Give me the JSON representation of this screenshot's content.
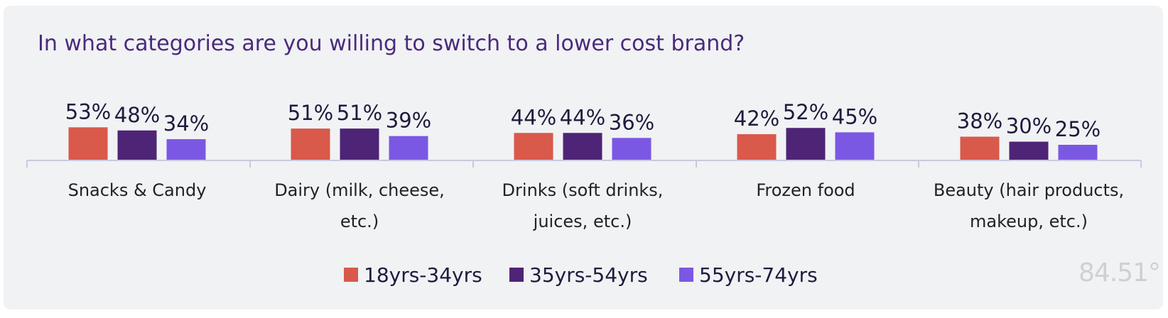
{
  "chart_data": {
    "type": "bar",
    "title": "In what categories are you willing to switch to a lower cost brand?",
    "categories": [
      [
        "Snacks & Candy"
      ],
      [
        "Dairy (milk, cheese,",
        "etc.)"
      ],
      [
        "Drinks (soft drinks,",
        "juices, etc.)"
      ],
      [
        "Frozen food"
      ],
      [
        "Beauty (hair products,",
        "makeup, etc.)"
      ]
    ],
    "series": [
      {
        "name": "18yrs-34yrs",
        "color": "#d9594b",
        "values": [
          53,
          51,
          44,
          42,
          38
        ]
      },
      {
        "name": "35yrs-54yrs",
        "color": "#4e2476",
        "values": [
          48,
          51,
          44,
          52,
          30
        ]
      },
      {
        "name": "55yrs-74yrs",
        "color": "#7b58e3",
        "values": [
          34,
          39,
          36,
          45,
          25
        ]
      }
    ],
    "value_suffix": "%",
    "xlabel": "",
    "ylabel": "",
    "legend_position": "bottom-center"
  },
  "brand_logo": "84.51°"
}
